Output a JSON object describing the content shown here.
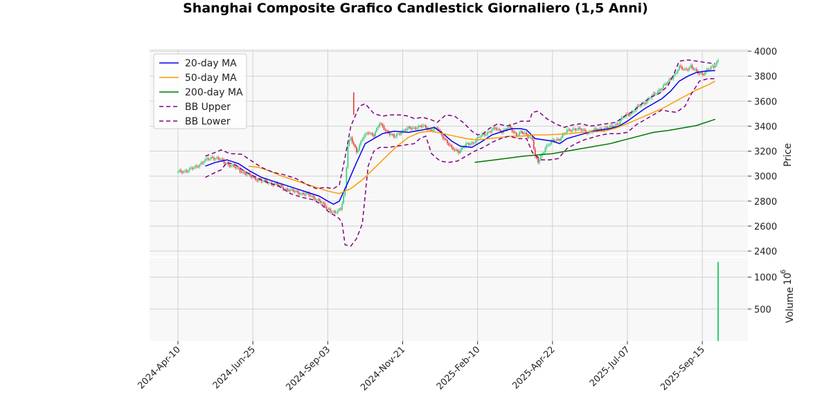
{
  "chart_data": {
    "type": "candlestick",
    "title": "Shanghai Composite Grafico Candlestick Giornaliero (1,5 Anni)",
    "ylabel": "Price",
    "volume_label": "Volume",
    "volume_exponent_base": "10",
    "volume_exponent": "6",
    "grid": true,
    "legend_position": "top-left",
    "price_ylim": [
      2300,
      4000
    ],
    "price_ticks": [
      "2400",
      "2600",
      "2800",
      "3000",
      "3200",
      "3400",
      "3600",
      "3800",
      "4000"
    ],
    "volume_ylim": [
      0,
      1300
    ],
    "volume_ticks": [
      "500",
      "1000"
    ],
    "x_ticks": [
      "2024-Apr-10",
      "2024-Jun-25",
      "2024-Sep-03",
      "2024-Nov-21",
      "2025-Feb-10",
      "2025-Apr-22",
      "2025-Jul-07",
      "2025-Sep-15"
    ],
    "x_tick_positions": [
      0,
      52,
      104,
      156,
      208,
      260,
      312,
      364
    ],
    "n_sessions": 376,
    "close": [
      [
        0,
        3030
      ],
      [
        6,
        3045
      ],
      [
        12,
        3070
      ],
      [
        18,
        3120
      ],
      [
        24,
        3150
      ],
      [
        28,
        3140
      ],
      [
        32,
        3110
      ],
      [
        38,
        3080
      ],
      [
        44,
        3040
      ],
      [
        50,
        3000
      ],
      [
        56,
        2970
      ],
      [
        62,
        2950
      ],
      [
        68,
        2935
      ],
      [
        74,
        2900
      ],
      [
        80,
        2880
      ],
      [
        86,
        2860
      ],
      [
        92,
        2845
      ],
      [
        98,
        2800
      ],
      [
        104,
        2740
      ],
      [
        109,
        2700
      ],
      [
        113,
        2740
      ],
      [
        116,
        2900
      ],
      [
        118,
        3250
      ],
      [
        120,
        3300
      ],
      [
        124,
        3200
      ],
      [
        128,
        3300
      ],
      [
        132,
        3350
      ],
      [
        136,
        3330
      ],
      [
        140,
        3420
      ],
      [
        145,
        3360
      ],
      [
        150,
        3310
      ],
      [
        155,
        3360
      ],
      [
        160,
        3380
      ],
      [
        165,
        3390
      ],
      [
        170,
        3400
      ],
      [
        175,
        3370
      ],
      [
        180,
        3380
      ],
      [
        185,
        3300
      ],
      [
        190,
        3220
      ],
      [
        195,
        3200
      ],
      [
        200,
        3250
      ],
      [
        205,
        3270
      ],
      [
        210,
        3320
      ],
      [
        215,
        3350
      ],
      [
        220,
        3380
      ],
      [
        225,
        3360
      ],
      [
        230,
        3390
      ],
      [
        235,
        3330
      ],
      [
        238,
        3350
      ],
      [
        242,
        3330
      ],
      [
        246,
        3300
      ],
      [
        248,
        3150
      ],
      [
        250,
        3110
      ],
      [
        255,
        3230
      ],
      [
        260,
        3280
      ],
      [
        265,
        3300
      ],
      [
        270,
        3360
      ],
      [
        275,
        3380
      ],
      [
        280,
        3370
      ],
      [
        285,
        3350
      ],
      [
        290,
        3370
      ],
      [
        295,
        3380
      ],
      [
        300,
        3390
      ],
      [
        305,
        3420
      ],
      [
        310,
        3480
      ],
      [
        315,
        3510
      ],
      [
        320,
        3560
      ],
      [
        325,
        3600
      ],
      [
        330,
        3650
      ],
      [
        335,
        3700
      ],
      [
        340,
        3750
      ],
      [
        345,
        3820
      ],
      [
        348,
        3870
      ],
      [
        352,
        3850
      ],
      [
        356,
        3880
      ],
      [
        360,
        3830
      ],
      [
        364,
        3820
      ],
      [
        368,
        3850
      ],
      [
        372,
        3880
      ],
      [
        375,
        3930
      ]
    ],
    "series": [
      {
        "name": "20-day MA",
        "color": "#0000ee",
        "dash": "",
        "points": [
          [
            19,
            3080
          ],
          [
            26,
            3110
          ],
          [
            34,
            3130
          ],
          [
            42,
            3100
          ],
          [
            50,
            3040
          ],
          [
            58,
            2990
          ],
          [
            66,
            2960
          ],
          [
            74,
            2930
          ],
          [
            82,
            2900
          ],
          [
            90,
            2870
          ],
          [
            98,
            2840
          ],
          [
            104,
            2800
          ],
          [
            108,
            2775
          ],
          [
            112,
            2800
          ],
          [
            118,
            2950
          ],
          [
            124,
            3110
          ],
          [
            130,
            3260
          ],
          [
            136,
            3300
          ],
          [
            142,
            3340
          ],
          [
            150,
            3360
          ],
          [
            160,
            3350
          ],
          [
            170,
            3370
          ],
          [
            178,
            3390
          ],
          [
            184,
            3340
          ],
          [
            190,
            3280
          ],
          [
            196,
            3240
          ],
          [
            204,
            3230
          ],
          [
            210,
            3270
          ],
          [
            218,
            3330
          ],
          [
            226,
            3360
          ],
          [
            232,
            3380
          ],
          [
            238,
            3380
          ],
          [
            242,
            3370
          ],
          [
            248,
            3300
          ],
          [
            254,
            3290
          ],
          [
            260,
            3280
          ],
          [
            265,
            3260
          ],
          [
            270,
            3300
          ],
          [
            276,
            3320
          ],
          [
            282,
            3340
          ],
          [
            288,
            3360
          ],
          [
            294,
            3370
          ],
          [
            300,
            3380
          ],
          [
            306,
            3400
          ],
          [
            312,
            3440
          ],
          [
            318,
            3490
          ],
          [
            324,
            3540
          ],
          [
            330,
            3580
          ],
          [
            336,
            3620
          ],
          [
            342,
            3680
          ],
          [
            348,
            3760
          ],
          [
            354,
            3800
          ],
          [
            360,
            3830
          ],
          [
            366,
            3840
          ],
          [
            373,
            3845
          ]
        ]
      },
      {
        "name": "50-day MA",
        "color": "#ff9900",
        "dash": "",
        "points": [
          [
            49,
            3080
          ],
          [
            56,
            3070
          ],
          [
            64,
            3040
          ],
          [
            72,
            3000
          ],
          [
            80,
            2970
          ],
          [
            88,
            2940
          ],
          [
            96,
            2910
          ],
          [
            104,
            2880
          ],
          [
            112,
            2860
          ],
          [
            120,
            2900
          ],
          [
            128,
            2970
          ],
          [
            136,
            3060
          ],
          [
            144,
            3150
          ],
          [
            152,
            3240
          ],
          [
            160,
            3310
          ],
          [
            168,
            3350
          ],
          [
            176,
            3360
          ],
          [
            184,
            3340
          ],
          [
            192,
            3320
          ],
          [
            200,
            3300
          ],
          [
            208,
            3290
          ],
          [
            216,
            3300
          ],
          [
            224,
            3310
          ],
          [
            232,
            3320
          ],
          [
            240,
            3320
          ],
          [
            246,
            3330
          ],
          [
            256,
            3330
          ],
          [
            264,
            3335
          ],
          [
            272,
            3340
          ],
          [
            280,
            3350
          ],
          [
            288,
            3355
          ],
          [
            296,
            3360
          ],
          [
            304,
            3385
          ],
          [
            312,
            3420
          ],
          [
            320,
            3460
          ],
          [
            328,
            3500
          ],
          [
            336,
            3540
          ],
          [
            344,
            3590
          ],
          [
            352,
            3640
          ],
          [
            360,
            3690
          ],
          [
            368,
            3730
          ],
          [
            373,
            3760
          ]
        ]
      },
      {
        "name": "200-day MA",
        "color": "#007700",
        "dash": "",
        "points": [
          [
            206,
            3110
          ],
          [
            220,
            3130
          ],
          [
            240,
            3160
          ],
          [
            260,
            3180
          ],
          [
            280,
            3220
          ],
          [
            300,
            3260
          ],
          [
            310,
            3290
          ],
          [
            320,
            3320
          ],
          [
            330,
            3350
          ],
          [
            340,
            3365
          ],
          [
            350,
            3385
          ],
          [
            360,
            3405
          ],
          [
            373,
            3455
          ]
        ]
      },
      {
        "name": "BB Upper",
        "color": "#800080",
        "dash": "6,4",
        "points": [
          [
            19,
            3160
          ],
          [
            26,
            3190
          ],
          [
            30,
            3210
          ],
          [
            36,
            3180
          ],
          [
            44,
            3175
          ],
          [
            50,
            3130
          ],
          [
            58,
            3070
          ],
          [
            66,
            3030
          ],
          [
            74,
            3010
          ],
          [
            82,
            2980
          ],
          [
            90,
            2930
          ],
          [
            96,
            2900
          ],
          [
            102,
            2910
          ],
          [
            108,
            2900
          ],
          [
            112,
            2930
          ],
          [
            116,
            3150
          ],
          [
            120,
            3400
          ],
          [
            126,
            3560
          ],
          [
            130,
            3580
          ],
          [
            136,
            3500
          ],
          [
            142,
            3480
          ],
          [
            148,
            3490
          ],
          [
            154,
            3490
          ],
          [
            160,
            3480
          ],
          [
            164,
            3460
          ],
          [
            170,
            3470
          ],
          [
            176,
            3450
          ],
          [
            180,
            3430
          ],
          [
            186,
            3490
          ],
          [
            192,
            3480
          ],
          [
            198,
            3430
          ],
          [
            204,
            3360
          ],
          [
            208,
            3330
          ],
          [
            212,
            3340
          ],
          [
            216,
            3380
          ],
          [
            222,
            3420
          ],
          [
            228,
            3400
          ],
          [
            234,
            3420
          ],
          [
            238,
            3440
          ],
          [
            244,
            3440
          ],
          [
            246,
            3510
          ],
          [
            250,
            3520
          ],
          [
            256,
            3460
          ],
          [
            262,
            3420
          ],
          [
            268,
            3390
          ],
          [
            274,
            3410
          ],
          [
            280,
            3420
          ],
          [
            286,
            3400
          ],
          [
            292,
            3410
          ],
          [
            298,
            3420
          ],
          [
            304,
            3430
          ],
          [
            310,
            3480
          ],
          [
            316,
            3520
          ],
          [
            322,
            3580
          ],
          [
            328,
            3630
          ],
          [
            334,
            3660
          ],
          [
            340,
            3720
          ],
          [
            344,
            3810
          ],
          [
            348,
            3920
          ],
          [
            354,
            3930
          ],
          [
            360,
            3920
          ],
          [
            366,
            3910
          ],
          [
            373,
            3900
          ]
        ]
      },
      {
        "name": "BB Lower",
        "color": "#800080",
        "dash": "6,4",
        "points": [
          [
            19,
            2990
          ],
          [
            26,
            3030
          ],
          [
            30,
            3050
          ],
          [
            34,
            3110
          ],
          [
            40,
            3090
          ],
          [
            46,
            3040
          ],
          [
            54,
            2990
          ],
          [
            62,
            2950
          ],
          [
            70,
            2920
          ],
          [
            78,
            2860
          ],
          [
            86,
            2830
          ],
          [
            94,
            2810
          ],
          [
            100,
            2770
          ],
          [
            104,
            2720
          ],
          [
            108,
            2690
          ],
          [
            112,
            2660
          ],
          [
            114,
            2620
          ],
          [
            116,
            2450
          ],
          [
            120,
            2440
          ],
          [
            124,
            2500
          ],
          [
            128,
            2620
          ],
          [
            132,
            3080
          ],
          [
            136,
            3200
          ],
          [
            140,
            3230
          ],
          [
            146,
            3230
          ],
          [
            152,
            3240
          ],
          [
            158,
            3250
          ],
          [
            164,
            3260
          ],
          [
            168,
            3300
          ],
          [
            172,
            3320
          ],
          [
            176,
            3180
          ],
          [
            182,
            3120
          ],
          [
            188,
            3110
          ],
          [
            194,
            3120
          ],
          [
            200,
            3160
          ],
          [
            206,
            3200
          ],
          [
            212,
            3230
          ],
          [
            218,
            3270
          ],
          [
            224,
            3300
          ],
          [
            230,
            3320
          ],
          [
            236,
            3300
          ],
          [
            242,
            3300
          ],
          [
            246,
            3190
          ],
          [
            252,
            3130
          ],
          [
            258,
            3130
          ],
          [
            264,
            3140
          ],
          [
            270,
            3220
          ],
          [
            276,
            3260
          ],
          [
            282,
            3290
          ],
          [
            288,
            3310
          ],
          [
            294,
            3330
          ],
          [
            300,
            3340
          ],
          [
            306,
            3340
          ],
          [
            312,
            3350
          ],
          [
            318,
            3410
          ],
          [
            324,
            3450
          ],
          [
            330,
            3490
          ],
          [
            336,
            3530
          ],
          [
            340,
            3520
          ],
          [
            346,
            3510
          ],
          [
            352,
            3560
          ],
          [
            356,
            3650
          ],
          [
            362,
            3760
          ],
          [
            368,
            3780
          ],
          [
            373,
            3780
          ]
        ]
      }
    ],
    "volume": [
      [
        375,
        1240
      ]
    ],
    "volume_color": "#2ecc71",
    "spike": {
      "x": 122,
      "top": 3670,
      "bottom": 3490,
      "color": "#e53935"
    },
    "candle_up_color": "#2ecc71",
    "candle_down_color": "#e53935"
  }
}
